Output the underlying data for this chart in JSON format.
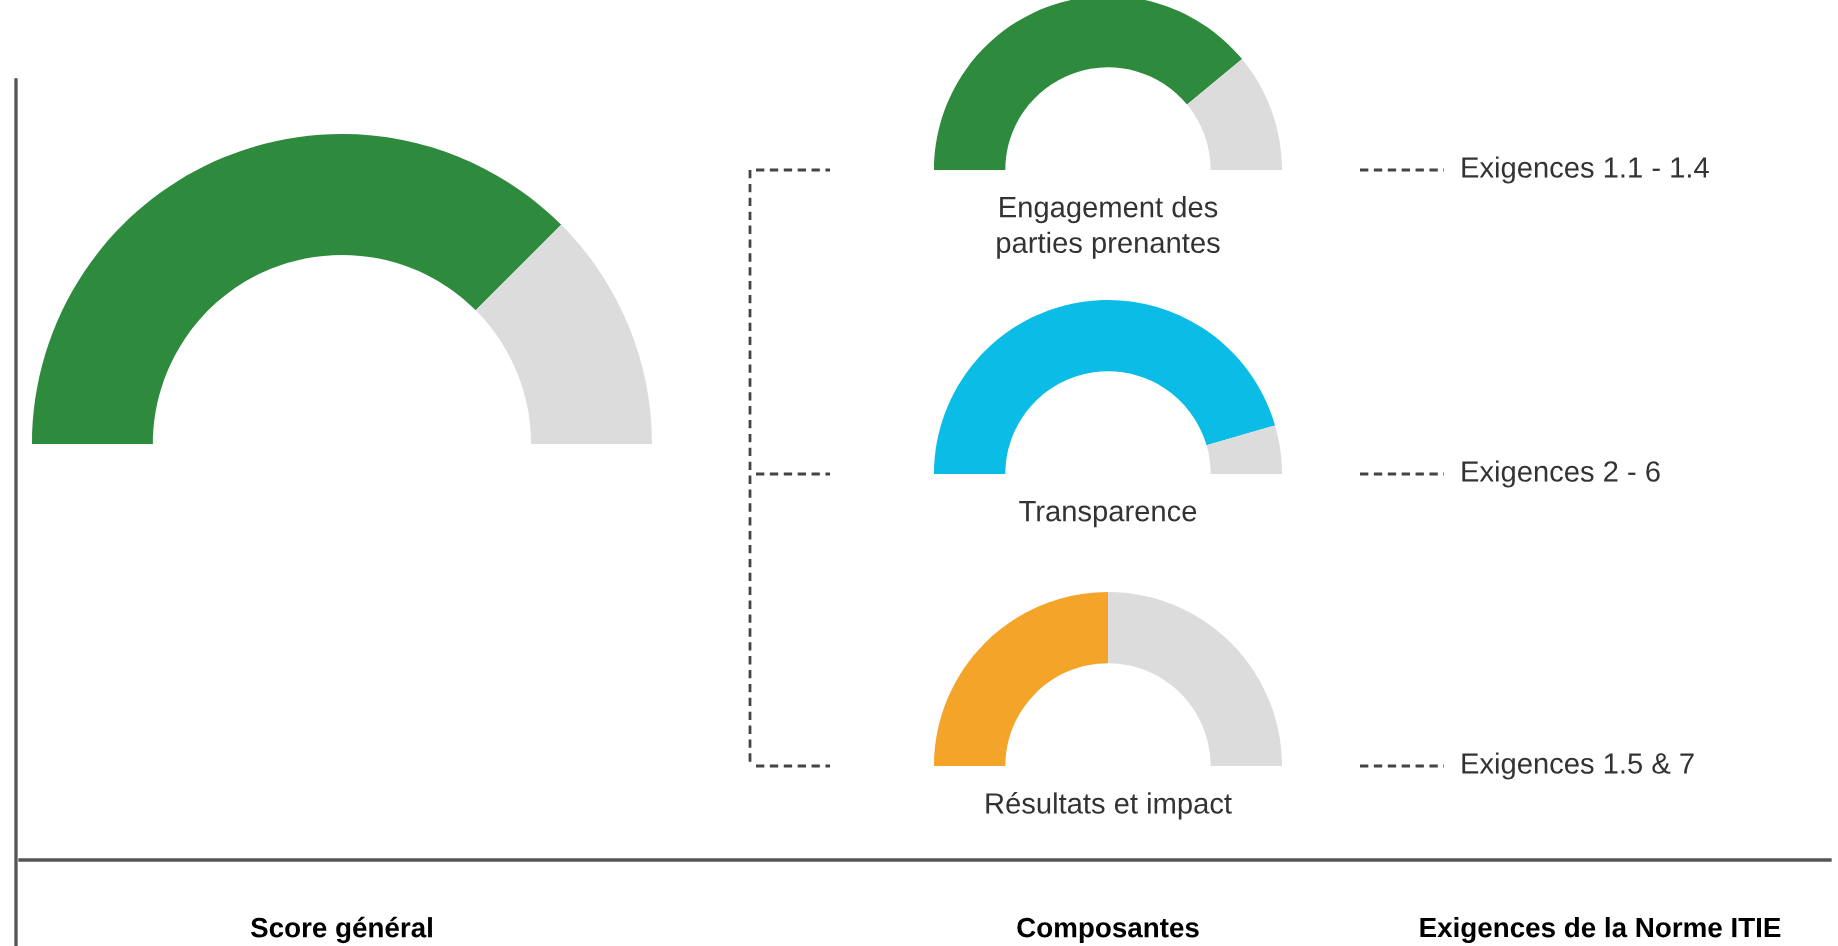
{
  "chart_data": [
    {
      "type": "donut",
      "title": "Score général",
      "categories": [
        null,
        null
      ],
      "values": [
        75,
        25
      ],
      "colors": [
        "#2e8b3e",
        "#dcdcdc"
      ],
      "annotations": [
        "Composantes",
        "Exigences de la Norme ITIE"
      ]
    },
    {
      "type": "donut",
      "title": "Engagement des\nparties prenantes",
      "categories": [
        null,
        null
      ],
      "values": [
        78,
        22
      ],
      "colors": [
        "#2e8b3e",
        "#dcdcdc"
      ],
      "annotations": [
        "Exigences 1.1 - 1.4"
      ]
    },
    {
      "type": "donut",
      "title": "Transparence",
      "categories": [
        null,
        null
      ],
      "values": [
        91,
        9
      ],
      "colors": [
        "#0bbde6",
        "#dcdcdc"
      ],
      "annotations": [
        "Exigences 2 - 6"
      ]
    },
    {
      "type": "donut",
      "title": "Résultats et impact",
      "categories": [
        null,
        null
      ],
      "values": [
        50,
        50
      ],
      "colors": [
        "#f5a42a",
        "#dcdcdc"
      ],
      "annotations": [
        "Exigences 1.5 & 7"
      ]
    }
  ]
}
